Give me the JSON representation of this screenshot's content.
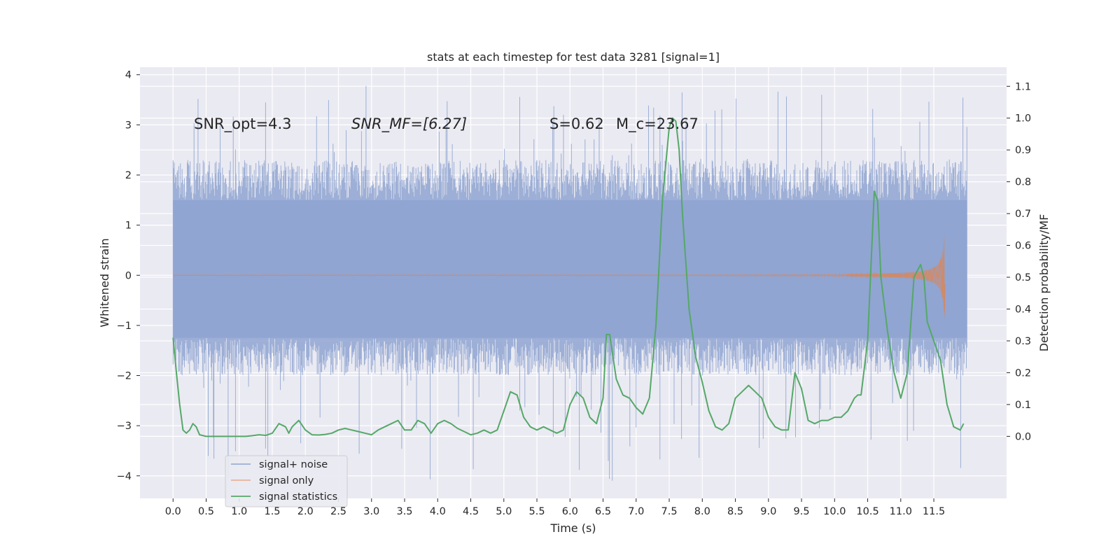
{
  "chart_data": {
    "type": "line",
    "title": "stats at each timestep for test data 3281 [signal=1]",
    "xlabel": "Time (s)",
    "ylabel": "Whitened strain",
    "y2label": "Detection probability/MF",
    "xlim": [
      -0.5,
      12.6
    ],
    "ylim": [
      -4.45,
      4.15
    ],
    "y2lim": [
      -0.195,
      1.16
    ],
    "x_ticks": [
      0.0,
      0.5,
      1.0,
      1.5,
      2.0,
      2.5,
      3.0,
      3.5,
      4.0,
      4.5,
      5.0,
      5.5,
      6.0,
      6.5,
      7.0,
      7.5,
      8.0,
      8.5,
      9.0,
      9.5,
      10.0,
      10.5,
      11.0,
      11.5
    ],
    "x_tick_labels": [
      "0.0",
      "0.5",
      "1.0",
      "1.5",
      "2.0",
      "2.5",
      "3.0",
      "3.5",
      "4.0",
      "4.5",
      "5.0",
      "5.5",
      "6.0",
      "6.5",
      "7.0",
      "7.5",
      "8.0",
      "8.5",
      "9.0",
      "9.5",
      "10.0",
      "10.5",
      "11.0",
      "11.5"
    ],
    "y_ticks": [
      4,
      3,
      2,
      1,
      0,
      -1,
      -2,
      -3,
      -4
    ],
    "y_tick_labels": [
      "4",
      "3",
      "2",
      "1",
      "0",
      "−1",
      "−2",
      "−3",
      "−4"
    ],
    "y2_ticks": [
      1.1,
      1.0,
      0.9,
      0.8,
      0.7,
      0.6,
      0.5,
      0.4,
      0.3,
      0.2,
      0.1,
      0.0
    ],
    "y2_tick_labels": [
      "1.1",
      "1.0",
      "0.9",
      "0.8",
      "0.7",
      "0.6",
      "0.5",
      "0.4",
      "0.3",
      "0.2",
      "0.1",
      "0.0"
    ],
    "grid": true,
    "legend_position": "lower-left",
    "annotations": [
      {
        "text": "SNR_opt=4.3",
        "x": 0.2,
        "y": 3.0
      },
      {
        "text": "SNR_MF=[6.27]",
        "x": 2.6,
        "y": 3.0
      },
      {
        "text": "S=0.62",
        "x": 5.6,
        "y": 3.0
      },
      {
        "text": "M_c=23.67",
        "x": 6.6,
        "y": 3.0
      }
    ],
    "series": [
      {
        "name": "signal+ noise",
        "color": "#8fa5d1",
        "axis": "left",
        "x_range": [
          0.0,
          12.0
        ],
        "band": {
          "core_low": -1.25,
          "core_high": 1.5,
          "typical_low": -2.0,
          "typical_high": 2.3,
          "max": 3.8,
          "min": -4.1
        }
      },
      {
        "name": "signal only",
        "color": "#dd8452",
        "axis": "left",
        "x_range": [
          0.0,
          11.67
        ],
        "chirp_peak_amplitude": 0.9,
        "chirp_end_time": 11.67
      },
      {
        "name": "signal statistics",
        "color": "#55a868",
        "axis": "right",
        "x": [
          0.0,
          0.05,
          0.1,
          0.15,
          0.2,
          0.25,
          0.3,
          0.35,
          0.4,
          0.5,
          0.6,
          0.7,
          0.8,
          0.9,
          1.0,
          1.1,
          1.2,
          1.3,
          1.4,
          1.5,
          1.6,
          1.7,
          1.75,
          1.8,
          1.9,
          2.0,
          2.1,
          2.2,
          2.3,
          2.4,
          2.5,
          2.6,
          2.7,
          2.8,
          2.9,
          3.0,
          3.1,
          3.2,
          3.3,
          3.4,
          3.5,
          3.6,
          3.7,
          3.8,
          3.9,
          4.0,
          4.1,
          4.2,
          4.3,
          4.4,
          4.5,
          4.6,
          4.7,
          4.8,
          4.9,
          5.0,
          5.1,
          5.2,
          5.3,
          5.4,
          5.5,
          5.6,
          5.7,
          5.8,
          5.9,
          6.0,
          6.1,
          6.2,
          6.3,
          6.4,
          6.5,
          6.55,
          6.6,
          6.7,
          6.8,
          6.9,
          7.0,
          7.1,
          7.2,
          7.3,
          7.4,
          7.5,
          7.55,
          7.6,
          7.65,
          7.7,
          7.8,
          7.9,
          8.0,
          8.1,
          8.2,
          8.3,
          8.4,
          8.5,
          8.6,
          8.7,
          8.8,
          8.9,
          9.0,
          9.1,
          9.2,
          9.3,
          9.4,
          9.5,
          9.6,
          9.7,
          9.8,
          9.9,
          10.0,
          10.1,
          10.2,
          10.3,
          10.35,
          10.4,
          10.5,
          10.6,
          10.65,
          10.7,
          10.8,
          10.9,
          11.0,
          11.1,
          11.2,
          11.3,
          11.35,
          11.4,
          11.5,
          11.6,
          11.7,
          11.8,
          11.9,
          11.95
        ],
        "values": [
          0.31,
          0.2,
          0.1,
          0.02,
          0.01,
          0.02,
          0.04,
          0.03,
          0.005,
          0.0,
          0.0,
          0.0,
          0.0,
          0.0,
          0.0,
          0.0,
          0.002,
          0.005,
          0.003,
          0.01,
          0.04,
          0.03,
          0.01,
          0.03,
          0.05,
          0.02,
          0.005,
          0.004,
          0.006,
          0.01,
          0.02,
          0.025,
          0.02,
          0.015,
          0.01,
          0.005,
          0.02,
          0.03,
          0.04,
          0.05,
          0.02,
          0.02,
          0.05,
          0.04,
          0.01,
          0.04,
          0.05,
          0.04,
          0.025,
          0.015,
          0.005,
          0.01,
          0.02,
          0.01,
          0.02,
          0.08,
          0.14,
          0.13,
          0.06,
          0.03,
          0.02,
          0.03,
          0.02,
          0.01,
          0.02,
          0.1,
          0.14,
          0.12,
          0.06,
          0.04,
          0.12,
          0.32,
          0.32,
          0.18,
          0.13,
          0.12,
          0.09,
          0.07,
          0.12,
          0.35,
          0.75,
          0.97,
          1.0,
          0.99,
          0.9,
          0.7,
          0.4,
          0.25,
          0.17,
          0.08,
          0.03,
          0.02,
          0.04,
          0.12,
          0.14,
          0.16,
          0.14,
          0.12,
          0.06,
          0.03,
          0.02,
          0.02,
          0.2,
          0.15,
          0.05,
          0.04,
          0.05,
          0.05,
          0.06,
          0.06,
          0.08,
          0.12,
          0.13,
          0.13,
          0.3,
          0.77,
          0.74,
          0.5,
          0.33,
          0.2,
          0.12,
          0.2,
          0.5,
          0.54,
          0.5,
          0.36,
          0.3,
          0.24,
          0.1,
          0.03,
          0.02,
          0.04
        ]
      }
    ]
  }
}
